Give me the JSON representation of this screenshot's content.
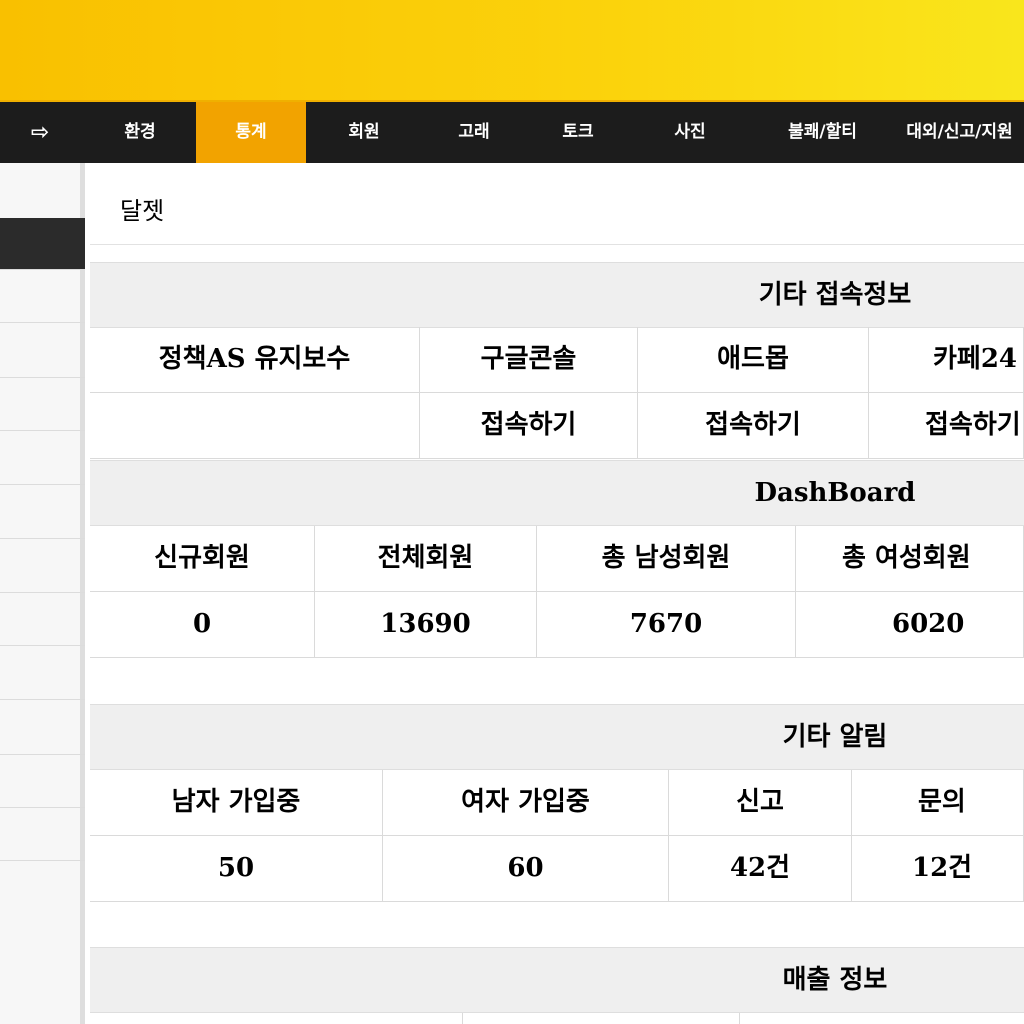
{
  "nav": {
    "logout_icon": "sign-out-icon",
    "items": [
      "환경",
      "통계",
      "회원",
      "고래",
      "토크",
      "사진",
      "불쾌/할티",
      "대외/신고/지원"
    ],
    "active": "통계"
  },
  "colors": {
    "accent": "#f2a300",
    "nav_bg": "#1c1c1c"
  },
  "page_title": "달젯",
  "access": {
    "title": "기타 접속정보",
    "headers": [
      "정책AS 유지보수",
      "구글콘솔",
      "애드몹",
      "카페24"
    ],
    "links": [
      "",
      "접속하기",
      "접속하기",
      "접속하기"
    ]
  },
  "dashboard": {
    "title": "DashBoard",
    "headers": [
      "신규회원",
      "전체회원",
      "총 남성회원",
      "총 여성회원"
    ],
    "values": [
      "0",
      "13690",
      "7670",
      "6020"
    ]
  },
  "alerts": {
    "title": "기타 알림",
    "headers": [
      "남자 가입중",
      "여자 가입중",
      "신고",
      "문의"
    ],
    "values": [
      "50",
      "60",
      "42건",
      "12건"
    ]
  },
  "sales": {
    "title": "매출 정보"
  }
}
